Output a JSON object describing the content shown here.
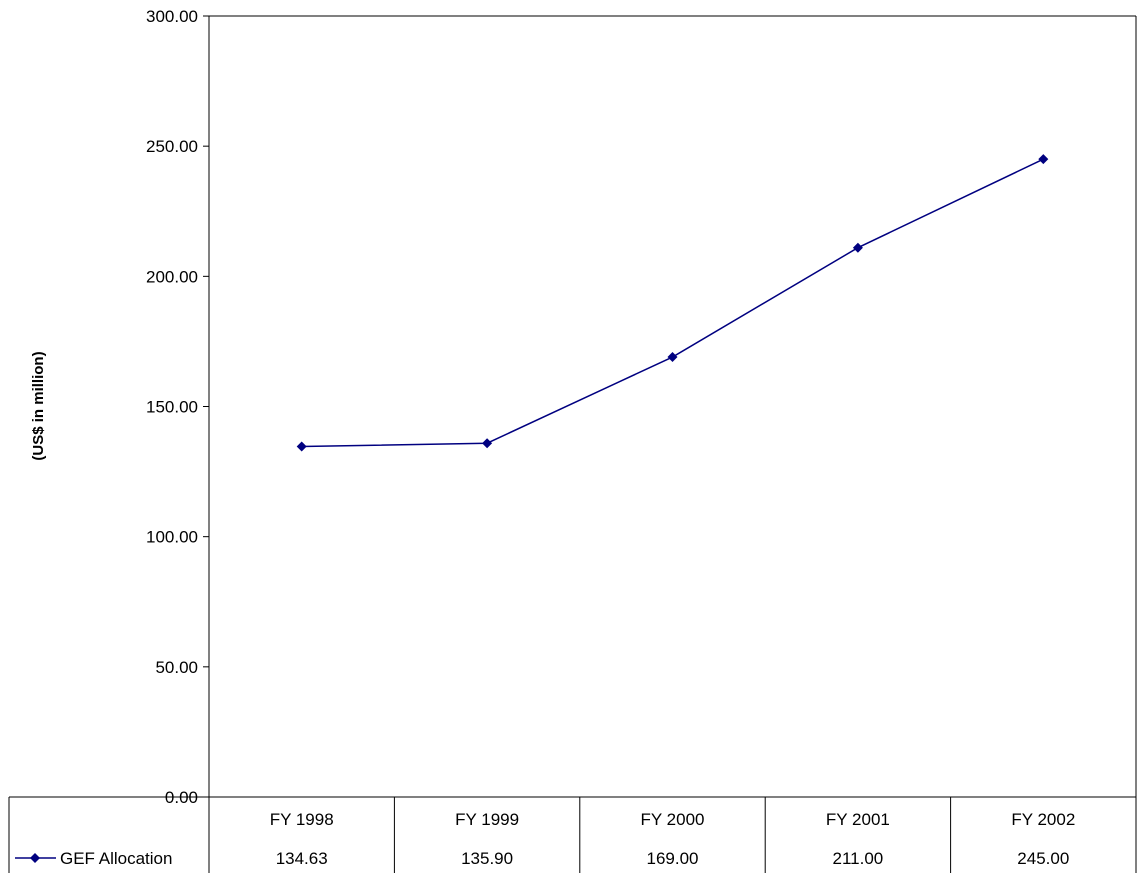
{
  "chart_data": {
    "type": "line",
    "title": "",
    "xlabel": "",
    "ylabel": "(US$ in million)",
    "ylim": [
      0,
      300
    ],
    "yticks": [
      "0.00",
      "50.00",
      "100.00",
      "150.00",
      "200.00",
      "250.00",
      "300.00"
    ],
    "categories": [
      "FY 1998",
      "FY 1999",
      "FY 2000",
      "FY 2001",
      "FY 2002"
    ],
    "series": [
      {
        "name": "GEF Allocation",
        "values": [
          134.63,
          135.9,
          169.0,
          211.0,
          245.0
        ],
        "value_labels": [
          "134.63",
          "135.90",
          "169.00",
          "211.00",
          "245.00"
        ],
        "color": "#000080",
        "marker": "diamond"
      }
    ],
    "grid": false,
    "legend": "data-table-bottom-left"
  }
}
